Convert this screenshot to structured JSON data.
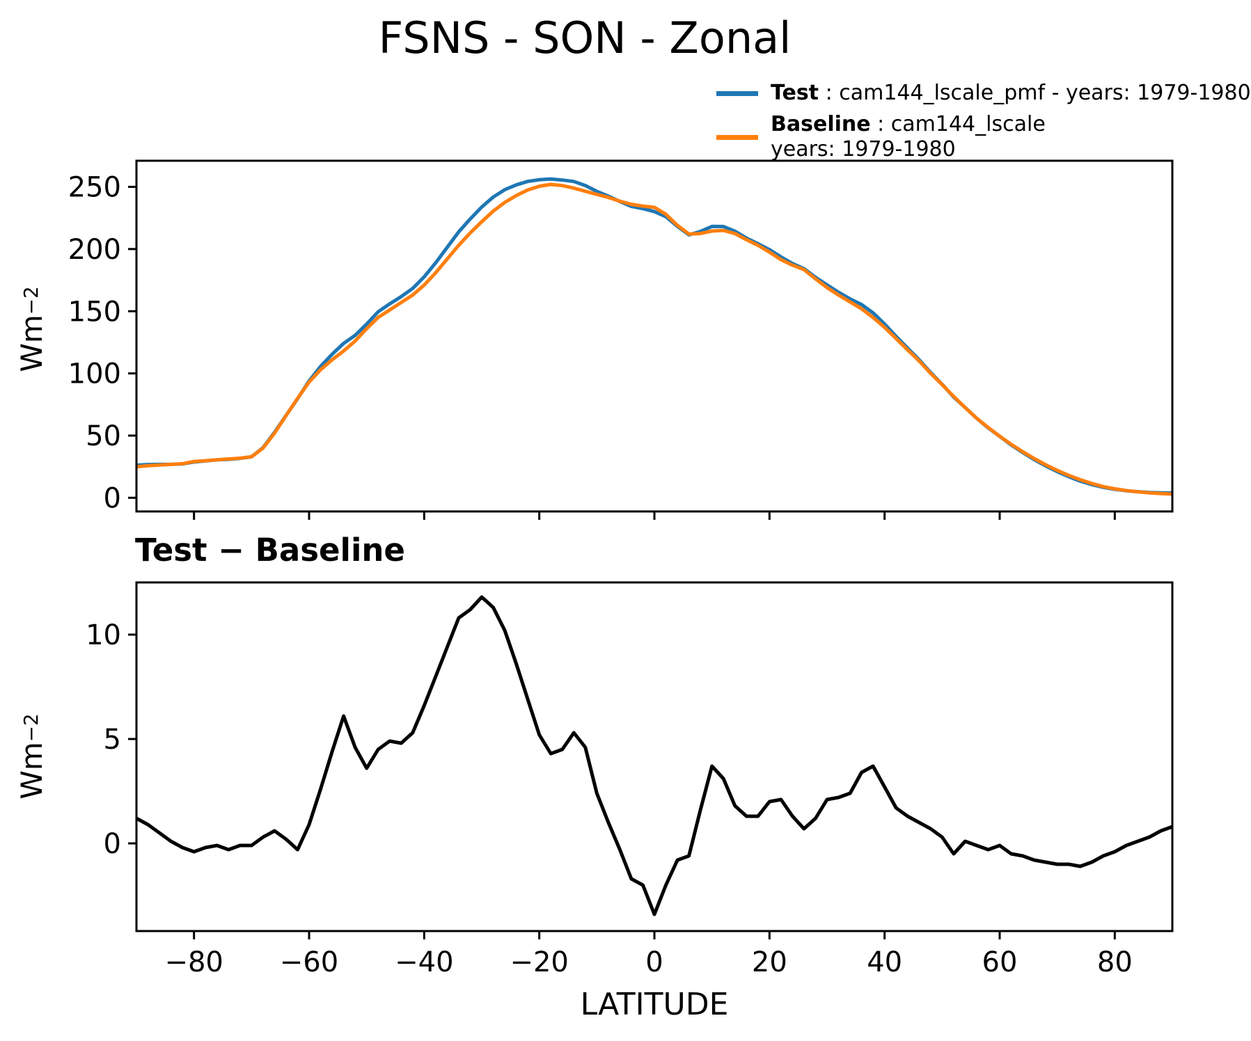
{
  "title": "FSNS - SON - Zonal",
  "legend": {
    "test": {
      "name": "Test",
      "sep": " : ",
      "desc": "cam144_lscale_pmf - years: 1979-1980",
      "color": "#1f77b4"
    },
    "baseline": {
      "name": "Baseline",
      "sep": " : ",
      "desc": "cam144_lscale",
      "desc2": "years: 1979-1980",
      "color": "#ff7f0e"
    }
  },
  "colors": {
    "test_line": "#1f77b4",
    "baseline_line": "#ff7f0e",
    "diff_line": "#000000",
    "axis": "#000000",
    "background": "#ffffff"
  },
  "chart_data": [
    {
      "type": "line",
      "title": "",
      "ylabel_base": "Wm",
      "ylabel_exp": "−2",
      "xlim": [
        -90,
        90
      ],
      "ylim": [
        -11,
        271
      ],
      "xticks": [
        -80,
        -60,
        -40,
        -20,
        0,
        20,
        40,
        60,
        80
      ],
      "show_xticklabels": false,
      "yticks": [
        0,
        50,
        100,
        150,
        200,
        250
      ],
      "grid": false,
      "legend_position": "upper-right-above-axes",
      "x": [
        -90,
        -88,
        -86,
        -84,
        -82,
        -80,
        -78,
        -76,
        -74,
        -72,
        -70,
        -68,
        -66,
        -64,
        -62,
        -60,
        -58,
        -56,
        -54,
        -52,
        -50,
        -48,
        -46,
        -44,
        -42,
        -40,
        -38,
        -36,
        -34,
        -32,
        -30,
        -28,
        -26,
        -24,
        -22,
        -20,
        -18,
        -16,
        -14,
        -12,
        -10,
        -8,
        -6,
        -4,
        -2,
        0,
        2,
        4,
        6,
        8,
        10,
        12,
        14,
        16,
        18,
        20,
        22,
        24,
        26,
        28,
        30,
        32,
        34,
        36,
        38,
        40,
        42,
        44,
        46,
        48,
        50,
        52,
        54,
        56,
        58,
        60,
        62,
        64,
        66,
        68,
        70,
        72,
        74,
        76,
        78,
        80,
        82,
        84,
        86,
        88,
        90
      ],
      "series": [
        {
          "name": "Test",
          "color": "#1f77b4",
          "values": [
            26.2,
            26.7,
            26.8,
            26.9,
            27.2,
            28.8,
            29.6,
            30.5,
            30.9,
            31.7,
            32.9,
            40.3,
            52.6,
            66.2,
            79.7,
            93.9,
            105.6,
            115.4,
            124.1,
            130.6,
            139.6,
            149.5,
            155.9,
            161.8,
            168.3,
            177.6,
            189.0,
            201.4,
            213.8,
            224.2,
            233.8,
            241.8,
            247.7,
            251.6,
            254.4,
            255.7,
            256.3,
            255.5,
            254.3,
            251.1,
            246.4,
            242.5,
            238.2,
            234.3,
            232.5,
            230.1,
            226.0,
            218.2,
            211.4,
            214.1,
            218.2,
            218.1,
            214.3,
            208.8,
            204.3,
            199.5,
            193.6,
            188.3,
            184.2,
            177.2,
            171.1,
            165.2,
            159.9,
            155.4,
            148.7,
            139.7,
            129.7,
            120.3,
            111.0,
            100.7,
            91.3,
            81.0,
            72.6,
            63.9,
            56.2,
            49.4,
            42.5,
            36.4,
            30.7,
            25.6,
            21.0,
            17.0,
            13.4,
            10.6,
            8.4,
            6.8,
            5.7,
            4.9,
            4.3,
            4.0,
            3.8
          ]
        },
        {
          "name": "Baseline",
          "color": "#ff7f0e",
          "values": [
            25.0,
            25.8,
            26.3,
            26.8,
            27.4,
            29.2,
            29.8,
            30.6,
            31.2,
            31.8,
            33.0,
            40.0,
            52.0,
            66.0,
            80.0,
            93.0,
            103.0,
            111.0,
            118.0,
            126.0,
            136.0,
            145.0,
            151.0,
            157.0,
            163.0,
            171.0,
            181.0,
            192.0,
            203.0,
            213.0,
            222.0,
            230.5,
            237.5,
            243.0,
            247.5,
            250.5,
            252.0,
            251.0,
            249.0,
            246.5,
            244.0,
            241.5,
            238.5,
            236.0,
            234.5,
            233.5,
            228.0,
            219.0,
            212.0,
            212.5,
            214.5,
            215.0,
            212.5,
            207.5,
            203.0,
            197.5,
            191.5,
            187.0,
            183.5,
            176.0,
            169.0,
            163.0,
            157.5,
            152.0,
            145.0,
            137.0,
            128.0,
            119.0,
            110.0,
            100.0,
            91.0,
            81.5,
            72.5,
            64.0,
            56.5,
            49.5,
            43.0,
            37.0,
            31.5,
            26.5,
            22.0,
            18.0,
            14.5,
            11.5,
            9.0,
            7.2,
            5.8,
            4.8,
            4.0,
            3.4,
            3.0
          ]
        }
      ]
    },
    {
      "type": "line",
      "title": "Test − Baseline",
      "xlabel": "LATITUDE",
      "ylabel_base": "Wm",
      "ylabel_exp": "−2",
      "xlim": [
        -90,
        90
      ],
      "ylim": [
        -4.2,
        12.5
      ],
      "xticks": [
        -80,
        -60,
        -40,
        -20,
        0,
        20,
        40,
        60,
        80
      ],
      "show_xticklabels": true,
      "yticks": [
        0,
        5,
        10
      ],
      "grid": false,
      "x": [
        -90,
        -88,
        -86,
        -84,
        -82,
        -80,
        -78,
        -76,
        -74,
        -72,
        -70,
        -68,
        -66,
        -64,
        -62,
        -60,
        -58,
        -56,
        -54,
        -52,
        -50,
        -48,
        -46,
        -44,
        -42,
        -40,
        -38,
        -36,
        -34,
        -32,
        -30,
        -28,
        -26,
        -24,
        -22,
        -20,
        -18,
        -16,
        -14,
        -12,
        -10,
        -8,
        -6,
        -4,
        -2,
        0,
        2,
        4,
        6,
        8,
        10,
        12,
        14,
        16,
        18,
        20,
        22,
        24,
        26,
        28,
        30,
        32,
        34,
        36,
        38,
        40,
        42,
        44,
        46,
        48,
        50,
        52,
        54,
        56,
        58,
        60,
        62,
        64,
        66,
        68,
        70,
        72,
        74,
        76,
        78,
        80,
        82,
        84,
        86,
        88,
        90
      ],
      "series": [
        {
          "name": "Test − Baseline",
          "color": "#000000",
          "values": [
            1.2,
            0.9,
            0.5,
            0.1,
            -0.2,
            -0.4,
            -0.2,
            -0.1,
            -0.3,
            -0.1,
            -0.1,
            0.3,
            0.6,
            0.2,
            -0.3,
            0.9,
            2.6,
            4.4,
            6.1,
            4.6,
            3.6,
            4.5,
            4.9,
            4.8,
            5.3,
            6.6,
            8.0,
            9.4,
            10.8,
            11.2,
            11.8,
            11.3,
            10.2,
            8.6,
            6.9,
            5.2,
            4.3,
            4.5,
            5.3,
            4.6,
            2.4,
            1.0,
            -0.3,
            -1.7,
            -2.0,
            -3.4,
            -2.0,
            -0.8,
            -0.6,
            1.6,
            3.7,
            3.1,
            1.8,
            1.3,
            1.3,
            2.0,
            2.1,
            1.3,
            0.7,
            1.2,
            2.1,
            2.2,
            2.4,
            3.4,
            3.7,
            2.7,
            1.7,
            1.3,
            1.0,
            0.7,
            0.3,
            -0.5,
            0.1,
            -0.1,
            -0.3,
            -0.1,
            -0.5,
            -0.6,
            -0.8,
            -0.9,
            -1.0,
            -1.0,
            -1.1,
            -0.9,
            -0.6,
            -0.4,
            -0.1,
            0.1,
            0.3,
            0.6,
            0.8
          ]
        }
      ]
    }
  ]
}
